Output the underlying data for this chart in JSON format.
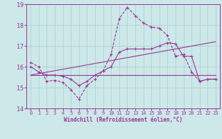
{
  "xlabel": "Windchill (Refroidissement éolien,°C)",
  "background_color": "#cce8e8",
  "grid_color": "#aacccc",
  "line_color": "#993399",
  "xlim": [
    -0.5,
    23.5
  ],
  "ylim": [
    14,
    19
  ],
  "yticks": [
    14,
    15,
    16,
    17,
    18,
    19
  ],
  "xticks": [
    0,
    1,
    2,
    3,
    4,
    5,
    6,
    7,
    8,
    9,
    10,
    11,
    12,
    13,
    14,
    15,
    16,
    17,
    18,
    19,
    20,
    21,
    22,
    23
  ],
  "series1_x": [
    0,
    1,
    2,
    3,
    4,
    5,
    6,
    7,
    8,
    9,
    10,
    11,
    12,
    13,
    14,
    15,
    16,
    17,
    18,
    19,
    20,
    21,
    22,
    23
  ],
  "series1_y": [
    16.2,
    16.0,
    15.3,
    15.35,
    15.25,
    14.9,
    14.45,
    15.1,
    15.4,
    15.8,
    16.6,
    18.3,
    18.85,
    18.45,
    18.1,
    17.9,
    17.85,
    17.5,
    16.5,
    16.6,
    15.75,
    15.3,
    15.4,
    15.4
  ],
  "series2_x": [
    0,
    1,
    2,
    3,
    4,
    5,
    6,
    7,
    8,
    9,
    10,
    11,
    12,
    13,
    14,
    15,
    16,
    17,
    18,
    19,
    20,
    21,
    22,
    23
  ],
  "series2_y": [
    16.0,
    15.75,
    15.6,
    15.6,
    15.55,
    15.4,
    15.1,
    15.3,
    15.6,
    15.8,
    16.0,
    16.7,
    16.85,
    16.85,
    16.85,
    16.85,
    17.0,
    17.15,
    17.1,
    16.5,
    16.5,
    15.3,
    15.4,
    15.4
  ],
  "series3_x": [
    0,
    23
  ],
  "series3_y": [
    15.6,
    17.2
  ],
  "series4_x": [
    0,
    20,
    23
  ],
  "series4_y": [
    15.6,
    15.6,
    15.6
  ]
}
